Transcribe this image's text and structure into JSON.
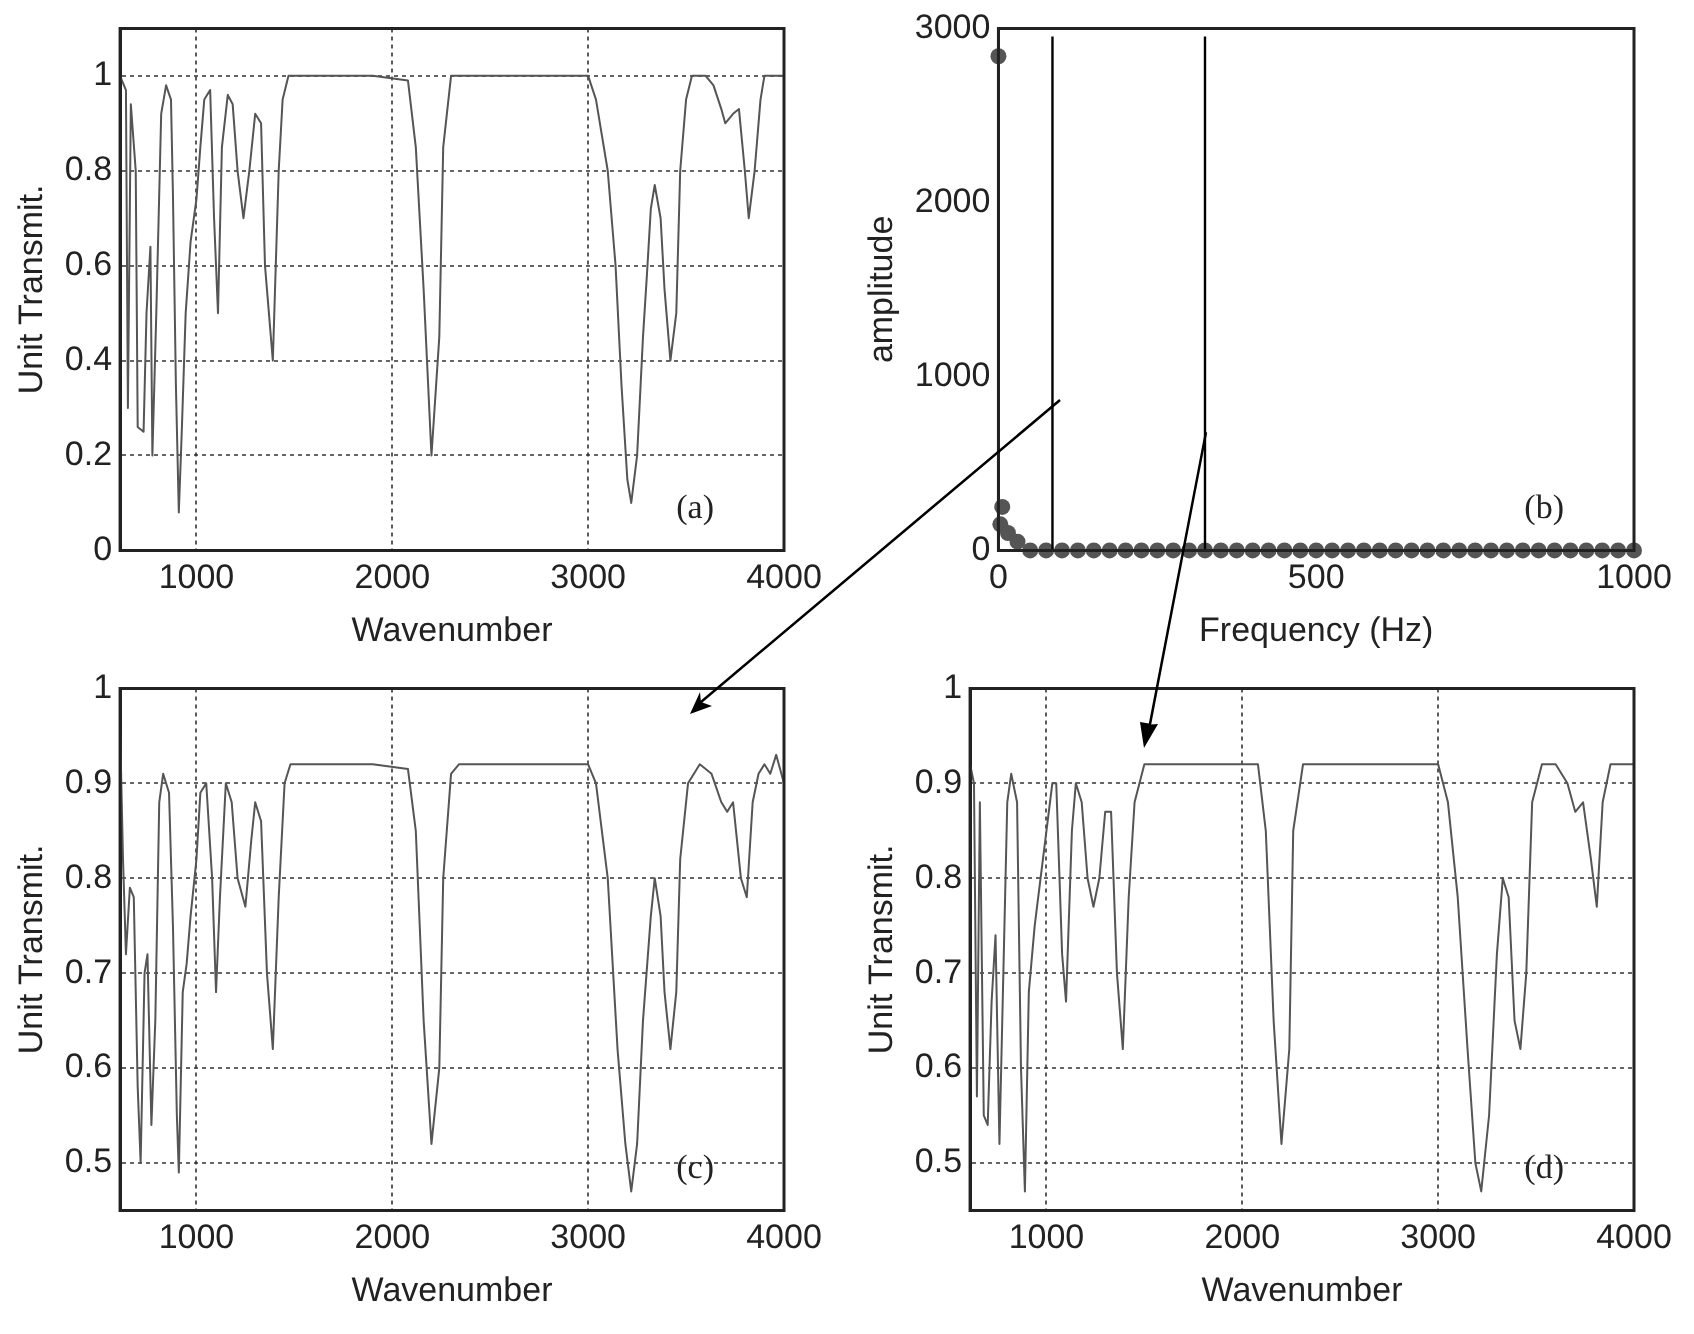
{
  "chart_data": [
    {
      "type": "line",
      "xlabel": "Wavenumber",
      "ylabel": "Unit Transmit.",
      "annotations": [
        "(a)"
      ],
      "grid": true,
      "xlim": [
        610,
        4000
      ],
      "xticks": [
        1000,
        2000,
        3000,
        4000
      ],
      "ylim": [
        0,
        1.1
      ],
      "yticks": [
        0,
        0.2,
        0.4,
        0.6,
        0.8,
        1
      ],
      "series": [
        {
          "color": "#555555",
          "x": [
            610,
            640,
            650,
            665,
            690,
            700,
            730,
            745,
            765,
            775,
            780,
            795,
            820,
            845,
            870,
            880,
            895,
            910,
            925,
            945,
            970,
            1000,
            1020,
            1040,
            1070,
            1090,
            1110,
            1130,
            1160,
            1185,
            1210,
            1240,
            1270,
            1300,
            1330,
            1350,
            1390,
            1420,
            1440,
            1470,
            1600,
            1750,
            1900,
            2080,
            2120,
            2160,
            2200,
            2240,
            2260,
            2300,
            2500,
            2700,
            3000,
            3040,
            3100,
            3140,
            3170,
            3200,
            3220,
            3250,
            3280,
            3300,
            3320,
            3340,
            3370,
            3390,
            3420,
            3450,
            3470,
            3500,
            3530,
            3600,
            3640,
            3680,
            3700,
            3740,
            3770,
            3800,
            3820,
            3850,
            3880,
            3900,
            4000
          ],
          "values": [
            1,
            0.97,
            0.3,
            0.94,
            0.8,
            0.26,
            0.25,
            0.5,
            0.64,
            0.2,
            0.2,
            0.5,
            0.92,
            0.98,
            0.95,
            0.75,
            0.35,
            0.08,
            0.25,
            0.5,
            0.65,
            0.74,
            0.85,
            0.95,
            0.97,
            0.7,
            0.5,
            0.85,
            0.96,
            0.94,
            0.8,
            0.7,
            0.8,
            0.92,
            0.9,
            0.6,
            0.4,
            0.8,
            0.95,
            1,
            1,
            1,
            1,
            0.99,
            0.85,
            0.55,
            0.2,
            0.45,
            0.85,
            1,
            1,
            1,
            1,
            0.95,
            0.8,
            0.6,
            0.35,
            0.15,
            0.1,
            0.2,
            0.45,
            0.58,
            0.72,
            0.77,
            0.7,
            0.55,
            0.4,
            0.5,
            0.8,
            0.95,
            1,
            1,
            0.98,
            0.93,
            0.9,
            0.92,
            0.93,
            0.8,
            0.7,
            0.8,
            0.95,
            1,
            1
          ]
        }
      ]
    },
    {
      "type": "scatter",
      "xlabel": "Frequency (Hz)",
      "ylabel": "amplitude",
      "annotations": [
        "(b)"
      ],
      "marker": "circle",
      "xlim": [
        0,
        1000
      ],
      "xticks": [
        0,
        500,
        1000
      ],
      "ylim": [
        0,
        3000
      ],
      "yticks": [
        0,
        1000,
        2000,
        3000
      ],
      "ref_lines": [
        {
          "axis": "x",
          "value": 85,
          "color": "#000000"
        },
        {
          "axis": "x",
          "value": 325,
          "color": "#000000"
        }
      ],
      "series": [
        {
          "color": "#555555",
          "x": [
            0,
            3,
            6,
            15,
            30,
            50,
            75,
            100,
            125,
            150,
            175,
            200,
            225,
            250,
            275,
            300,
            325,
            350,
            375,
            400,
            425,
            450,
            475,
            500,
            525,
            550,
            575,
            600,
            625,
            650,
            675,
            700,
            725,
            750,
            775,
            800,
            825,
            850,
            875,
            900,
            925,
            950,
            975,
            1000
          ],
          "values": [
            2840,
            150,
            250,
            100,
            50,
            0,
            0,
            0,
            0,
            0,
            0,
            0,
            0,
            0,
            0,
            0,
            0,
            0,
            0,
            0,
            0,
            0,
            0,
            0,
            0,
            0,
            0,
            0,
            0,
            0,
            0,
            0,
            0,
            0,
            0,
            0,
            0,
            0,
            0,
            0,
            0,
            0,
            0,
            0
          ]
        }
      ]
    },
    {
      "type": "line",
      "xlabel": "Wavenumber",
      "ylabel": "Unit Transmit.",
      "annotations": [
        "(c)"
      ],
      "grid": true,
      "xlim": [
        610,
        4000
      ],
      "xticks": [
        1000,
        2000,
        3000,
        4000
      ],
      "ylim": [
        0.45,
        1
      ],
      "yticks": [
        0.5,
        0.6,
        0.7,
        0.8,
        0.9,
        1
      ],
      "series": [
        {
          "color": "#555555",
          "x": [
            610,
            625,
            640,
            660,
            680,
            700,
            715,
            735,
            750,
            770,
            790,
            810,
            830,
            860,
            880,
            900,
            910,
            930,
            950,
            970,
            1000,
            1020,
            1050,
            1080,
            1100,
            1120,
            1150,
            1180,
            1210,
            1250,
            1280,
            1300,
            1330,
            1360,
            1390,
            1420,
            1450,
            1480,
            1600,
            1750,
            1900,
            2080,
            2120,
            2160,
            2200,
            2240,
            2260,
            2300,
            2340,
            2500,
            2700,
            3000,
            3040,
            3100,
            3150,
            3190,
            3220,
            3250,
            3280,
            3320,
            3340,
            3370,
            3390,
            3420,
            3450,
            3470,
            3510,
            3570,
            3630,
            3680,
            3710,
            3740,
            3780,
            3810,
            3840,
            3870,
            3900,
            3930,
            3960,
            4000
          ],
          "values": [
            0.96,
            0.82,
            0.72,
            0.79,
            0.78,
            0.58,
            0.5,
            0.7,
            0.72,
            0.54,
            0.65,
            0.88,
            0.91,
            0.89,
            0.75,
            0.55,
            0.49,
            0.68,
            0.71,
            0.76,
            0.82,
            0.89,
            0.9,
            0.8,
            0.68,
            0.78,
            0.9,
            0.88,
            0.8,
            0.77,
            0.84,
            0.88,
            0.86,
            0.7,
            0.62,
            0.78,
            0.9,
            0.92,
            0.92,
            0.92,
            0.92,
            0.915,
            0.85,
            0.65,
            0.52,
            0.6,
            0.8,
            0.91,
            0.92,
            0.92,
            0.92,
            0.92,
            0.9,
            0.8,
            0.62,
            0.52,
            0.47,
            0.52,
            0.65,
            0.76,
            0.8,
            0.76,
            0.68,
            0.62,
            0.68,
            0.82,
            0.9,
            0.92,
            0.91,
            0.88,
            0.87,
            0.88,
            0.8,
            0.78,
            0.88,
            0.91,
            0.92,
            0.91,
            0.93,
            0.9
          ]
        }
      ]
    },
    {
      "type": "line",
      "xlabel": "Wavenumber",
      "ylabel": "Unit Transmit.",
      "annotations": [
        "(d)"
      ],
      "grid": true,
      "xlim": [
        610,
        4000
      ],
      "xticks": [
        1000,
        2000,
        3000,
        4000
      ],
      "ylim": [
        0.45,
        1
      ],
      "yticks": [
        0.5,
        0.6,
        0.7,
        0.8,
        0.9,
        1
      ],
      "series": [
        {
          "color": "#555555",
          "x": [
            610,
            630,
            645,
            660,
            680,
            700,
            720,
            740,
            760,
            780,
            800,
            820,
            850,
            870,
            890,
            910,
            940,
            970,
            1000,
            1030,
            1050,
            1080,
            1100,
            1130,
            1150,
            1180,
            1210,
            1240,
            1270,
            1300,
            1330,
            1360,
            1390,
            1420,
            1450,
            1500,
            1800,
            2080,
            2120,
            2160,
            2200,
            2240,
            2260,
            2310,
            2600,
            3000,
            3050,
            3100,
            3150,
            3190,
            3220,
            3260,
            3300,
            3330,
            3360,
            3390,
            3420,
            3450,
            3480,
            3530,
            3600,
            3660,
            3700,
            3740,
            3780,
            3810,
            3840,
            3880,
            4000
          ],
          "values": [
            0.92,
            0.9,
            0.57,
            0.88,
            0.55,
            0.54,
            0.67,
            0.74,
            0.52,
            0.7,
            0.88,
            0.91,
            0.88,
            0.6,
            0.47,
            0.68,
            0.75,
            0.8,
            0.85,
            0.9,
            0.9,
            0.72,
            0.67,
            0.85,
            0.9,
            0.88,
            0.8,
            0.77,
            0.8,
            0.87,
            0.87,
            0.7,
            0.62,
            0.78,
            0.88,
            0.92,
            0.92,
            0.92,
            0.85,
            0.65,
            0.52,
            0.62,
            0.85,
            0.92,
            0.92,
            0.92,
            0.88,
            0.78,
            0.62,
            0.5,
            0.47,
            0.55,
            0.72,
            0.8,
            0.78,
            0.65,
            0.62,
            0.7,
            0.88,
            0.92,
            0.92,
            0.9,
            0.87,
            0.88,
            0.82,
            0.77,
            0.88,
            0.92,
            0.92
          ]
        }
      ]
    }
  ]
}
